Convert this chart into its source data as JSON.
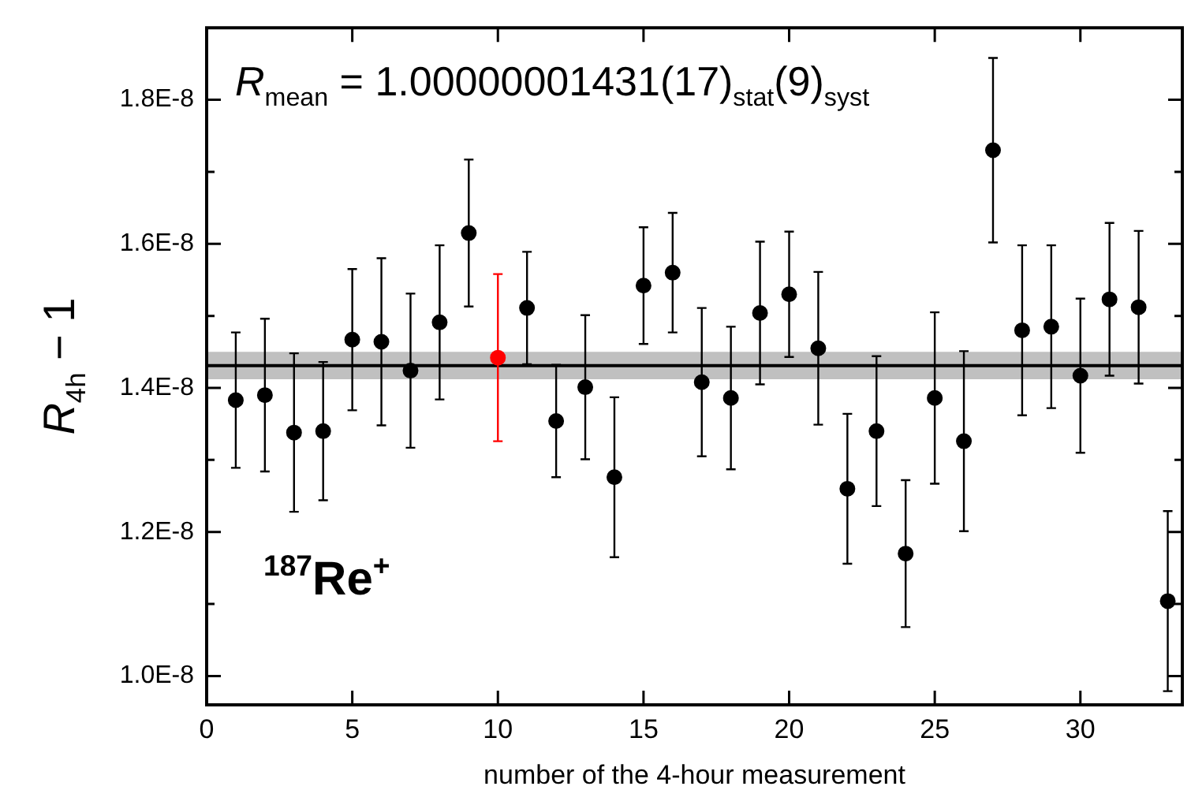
{
  "chart_data": {
    "type": "scatter",
    "xlabel": "number of the 4-hour measurement",
    "ylabel": "R$_{4h}$ − 1",
    "annotations": [
      "R$_{mean}$ = 1.00000001431(17)$_{stat}$(9)$_{syst}$",
      "$^{187}$Re$^{+}$"
    ],
    "x": [
      1,
      2,
      3,
      4,
      5,
      6,
      7,
      8,
      9,
      10,
      11,
      12,
      13,
      14,
      15,
      16,
      17,
      18,
      19,
      20,
      21,
      22,
      23,
      24,
      25,
      26,
      27,
      28,
      29,
      30,
      31,
      32,
      33
    ],
    "values": [
      1.383e-08,
      1.39e-08,
      1.338e-08,
      1.34e-08,
      1.467e-08,
      1.464e-08,
      1.424e-08,
      1.491e-08,
      1.615e-08,
      1.442e-08,
      1.511e-08,
      1.354e-08,
      1.401e-08,
      1.276e-08,
      1.542e-08,
      1.56e-08,
      1.408e-08,
      1.386e-08,
      1.504e-08,
      1.53e-08,
      1.455e-08,
      1.26e-08,
      1.34e-08,
      1.17e-08,
      1.386e-08,
      1.326e-08,
      1.73e-08,
      1.48e-08,
      1.485e-08,
      1.417e-08,
      1.523e-08,
      1.512e-08,
      1.104e-08
    ],
    "errors": [
      9.4e-10,
      1.06e-09,
      1.1e-09,
      9.6e-10,
      9.8e-10,
      1.16e-09,
      1.07e-09,
      1.07e-09,
      1.02e-09,
      1.16e-09,
      7.8e-10,
      7.8e-10,
      1e-09,
      1.11e-09,
      8.1e-10,
      8.3e-10,
      1.03e-09,
      9.9e-10,
      9.9e-10,
      8.7e-10,
      1.06e-09,
      1.04e-09,
      1.04e-09,
      1.02e-09,
      1.19e-09,
      1.25e-09,
      1.28e-09,
      1.18e-09,
      1.13e-09,
      1.07e-09,
      1.06e-09,
      1.06e-09,
      1.25e-09
    ],
    "colors": [
      "#000000",
      "#000000",
      "#000000",
      "#000000",
      "#000000",
      "#000000",
      "#000000",
      "#000000",
      "#000000",
      "#ff0000",
      "#000000",
      "#000000",
      "#000000",
      "#000000",
      "#000000",
      "#000000",
      "#000000",
      "#000000",
      "#000000",
      "#000000",
      "#000000",
      "#000000",
      "#000000",
      "#000000",
      "#000000",
      "#000000",
      "#000000",
      "#000000",
      "#000000",
      "#000000",
      "#000000",
      "#000000",
      "#000000"
    ],
    "marker": "circle",
    "ref_lines": [
      {
        "axis": "y",
        "value": 1.431e-08,
        "color": "#000000"
      }
    ],
    "bands": [
      {
        "axis": "y",
        "from": 1.412e-08,
        "to": 1.45e-08,
        "color": "#c0c0c0"
      }
    ],
    "xlim": [
      0,
      33.5
    ],
    "xticks": [
      0,
      5,
      10,
      15,
      20,
      25,
      30
    ],
    "ylim": [
      9.6e-09,
      1.9e-08
    ],
    "yticks": [
      {
        "value": 1e-08,
        "label": "1.0E-8"
      },
      {
        "value": 1.1e-08,
        "label": null
      },
      {
        "value": 1.2e-08,
        "label": "1.2E-8"
      },
      {
        "value": 1.3e-08,
        "label": null
      },
      {
        "value": 1.4e-08,
        "label": "1.4E-8"
      },
      {
        "value": 1.5e-08,
        "label": null
      },
      {
        "value": 1.6e-08,
        "label": "1.6E-8"
      },
      {
        "value": 1.7e-08,
        "label": null
      },
      {
        "value": 1.8e-08,
        "label": "1.8E-8"
      }
    ],
    "grid": false,
    "legend": false
  }
}
